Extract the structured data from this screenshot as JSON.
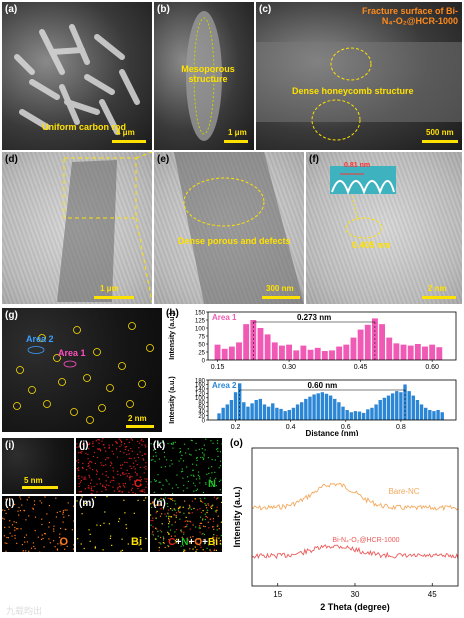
{
  "panels": {
    "a": {
      "label": "(a)",
      "caption": "Uniform carbon rod",
      "scale": "4 μm"
    },
    "b": {
      "label": "(b)",
      "caption": "Mesoporous structure",
      "scale": "1 μm"
    },
    "c": {
      "label": "(c)",
      "title": "Fracture surface of Bi-N₄-O₂@HCR-1000",
      "caption": "Dense honeycomb structure",
      "scale": "500 nm"
    },
    "d": {
      "label": "(d)",
      "scale": "1 μm"
    },
    "e": {
      "label": "(e)",
      "caption": "Dense porous and defects",
      "scale": "300 nm"
    },
    "f": {
      "label": "(f)",
      "inset_value": "0.81 nm",
      "value": "0.405 nm",
      "scale": "2 nm"
    },
    "g": {
      "label": "(g)",
      "area2": "Area 2",
      "area1": "Area 1",
      "scale": "2 nm"
    },
    "h": {
      "label": "(h)"
    },
    "i": {
      "label": "(i)",
      "scale": "5 nm"
    },
    "j": {
      "label": "(j)",
      "element": "C",
      "color": "#e02020"
    },
    "k": {
      "label": "(k)",
      "element": "N",
      "color": "#22c02a"
    },
    "l": {
      "label": "(l)",
      "element": "O",
      "color": "#ff7a1c"
    },
    "m": {
      "label": "(m)",
      "element": "Bi",
      "color": "#ffe100"
    },
    "n": {
      "label": "(n)",
      "c": "C",
      "plus1": "+",
      "n": "N",
      "plus2": "+",
      "o": "O",
      "plus3": "+",
      "bi": "Bi"
    },
    "o": {
      "label": "(o)"
    }
  },
  "watermark": "九载昀出",
  "chart_data": [
    {
      "type": "bar",
      "title": "Area 1",
      "color": "#f05ab4",
      "annotation": "0.273 nm",
      "xlabel": "",
      "ylabel": "Intensity (a.u.)",
      "xlim": [
        0.13,
        0.65
      ],
      "ylim": [
        0,
        150
      ],
      "xticks": [
        0.15,
        0.3,
        0.45,
        0.6
      ],
      "xticklabels": [
        "0.15",
        "0.30",
        "0.45",
        "0.60"
      ],
      "yticks": [
        0,
        25,
        50,
        75,
        100,
        125,
        150
      ],
      "x": [
        0.15,
        0.165,
        0.18,
        0.195,
        0.21,
        0.225,
        0.24,
        0.255,
        0.27,
        0.285,
        0.3,
        0.315,
        0.33,
        0.345,
        0.36,
        0.375,
        0.39,
        0.405,
        0.42,
        0.435,
        0.45,
        0.465,
        0.48,
        0.495,
        0.51,
        0.525,
        0.54,
        0.555,
        0.57,
        0.585,
        0.6,
        0.615
      ],
      "values": [
        48,
        35,
        42,
        55,
        112,
        125,
        100,
        80,
        55,
        45,
        48,
        30,
        45,
        32,
        38,
        28,
        30,
        42,
        48,
        70,
        95,
        110,
        130,
        112,
        70,
        52,
        48,
        45,
        50,
        42,
        48,
        40
      ]
    },
    {
      "type": "bar",
      "title": "Area 2",
      "color": "#2b86d6",
      "annotation": "0.60 nm",
      "xlabel": "Distance (nm)",
      "ylabel": "Intensity (a.u.)",
      "xlim": [
        0.1,
        1.0
      ],
      "ylim": [
        0,
        180
      ],
      "xticks": [
        0.2,
        0.4,
        0.6,
        0.8
      ],
      "xticklabels": [
        "0.2",
        "0.4",
        "0.6",
        "0.8"
      ],
      "yticks": [
        0,
        20,
        40,
        60,
        80,
        100,
        120,
        140,
        160,
        180
      ],
      "x": [
        0.14,
        0.155,
        0.17,
        0.185,
        0.2,
        0.215,
        0.23,
        0.245,
        0.26,
        0.275,
        0.29,
        0.305,
        0.32,
        0.335,
        0.35,
        0.365,
        0.38,
        0.395,
        0.41,
        0.425,
        0.44,
        0.455,
        0.47,
        0.485,
        0.5,
        0.515,
        0.53,
        0.545,
        0.56,
        0.575,
        0.59,
        0.605,
        0.62,
        0.635,
        0.65,
        0.665,
        0.68,
        0.695,
        0.71,
        0.725,
        0.74,
        0.755,
        0.77,
        0.785,
        0.8,
        0.815,
        0.83,
        0.845,
        0.86,
        0.875,
        0.89,
        0.905,
        0.92,
        0.935,
        0.95
      ],
      "values": [
        30,
        55,
        70,
        90,
        125,
        165,
        80,
        60,
        75,
        90,
        95,
        70,
        60,
        75,
        55,
        50,
        40,
        45,
        55,
        70,
        80,
        95,
        105,
        115,
        120,
        125,
        118,
        110,
        95,
        80,
        60,
        45,
        35,
        40,
        38,
        32,
        48,
        55,
        70,
        90,
        100,
        110,
        120,
        130,
        125,
        160,
        130,
        110,
        90,
        70,
        55,
        45,
        40,
        45,
        35
      ]
    },
    {
      "type": "line",
      "xlabel": "2 Theta (degree)",
      "ylabel": "Intensity (a.u.)",
      "xlim": [
        10,
        50
      ],
      "xticks": [
        15,
        30,
        45
      ],
      "xticklabels": [
        "15",
        "30",
        "45"
      ],
      "series": [
        {
          "name": "Bare-NC",
          "color": "#f4a95c"
        },
        {
          "name": "Bi-N₄-O₂@HCR-1000",
          "color": "#ec5a5a"
        }
      ]
    }
  ]
}
